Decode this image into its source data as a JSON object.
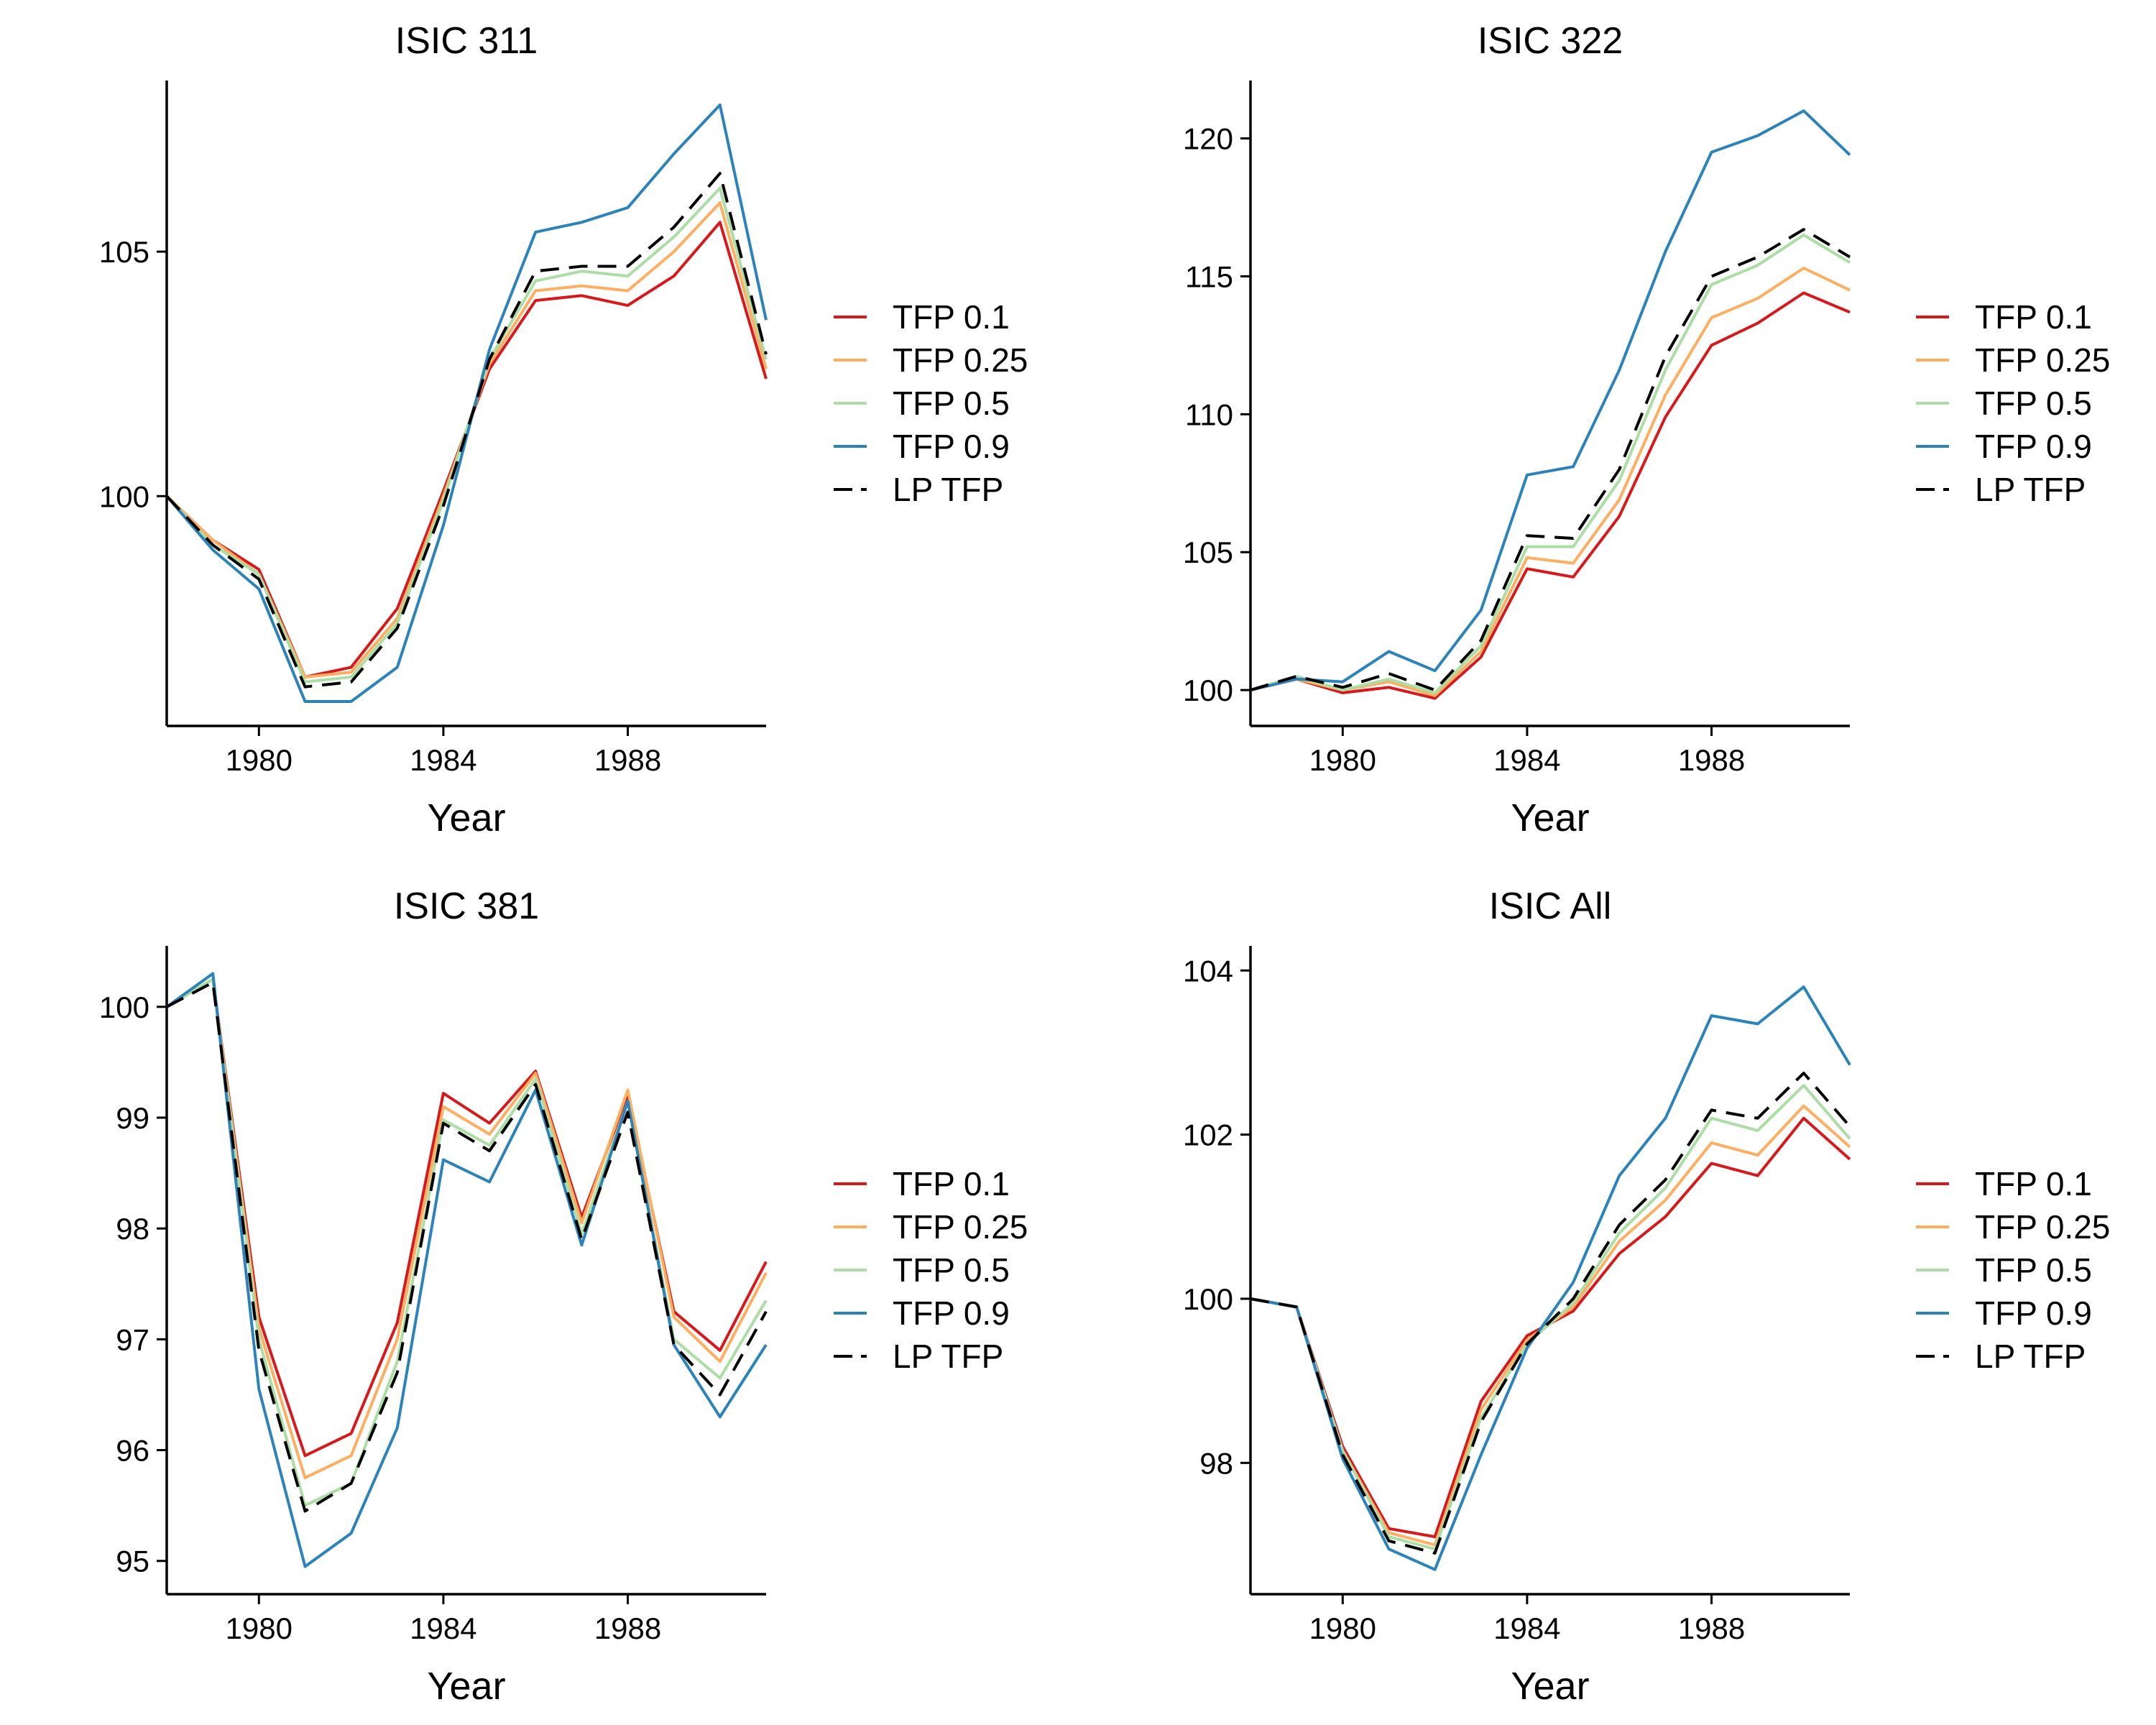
{
  "chart_data": [
    {
      "type": "line",
      "title": "ISIC 311",
      "xlabel": "Year",
      "ylabel": "",
      "xlim": [
        1978,
        1991
      ],
      "ylim": [
        95.3,
        108.5
      ],
      "xticks": [
        1980,
        1984,
        1988
      ],
      "yticks": [
        100,
        105
      ],
      "x": [
        1978,
        1979,
        1980,
        1981,
        1982,
        1983,
        1984,
        1985,
        1986,
        1987,
        1988,
        1989,
        1990,
        1991
      ],
      "series": [
        {
          "name": "TFP 0.1",
          "color": "#d7191c",
          "dash": "solid",
          "values": [
            100,
            99.1,
            98.5,
            96.3,
            96.5,
            97.7,
            100.1,
            102.6,
            104.0,
            104.1,
            103.9,
            104.5,
            105.6,
            102.4
          ]
        },
        {
          "name": "TFP 0.25",
          "color": "#fdae61",
          "dash": "solid",
          "values": [
            100,
            99.1,
            98.4,
            96.3,
            96.4,
            97.5,
            100.0,
            102.7,
            104.2,
            104.3,
            104.2,
            105.0,
            106.0,
            102.6
          ]
        },
        {
          "name": "TFP 0.5",
          "color": "#abdda4",
          "dash": "solid",
          "values": [
            100,
            99.0,
            98.4,
            96.2,
            96.3,
            97.4,
            99.9,
            102.8,
            104.4,
            104.6,
            104.5,
            105.3,
            106.3,
            102.8
          ]
        },
        {
          "name": "TFP 0.9",
          "color": "#2b83ba",
          "dash": "solid",
          "values": [
            100,
            98.9,
            98.1,
            95.8,
            95.8,
            96.5,
            99.4,
            103.0,
            105.4,
            105.6,
            105.9,
            107.0,
            108.0,
            103.6
          ]
        },
        {
          "name": "LP TFP",
          "color": "#000000",
          "dash": "dashed",
          "values": [
            100,
            99.0,
            98.3,
            96.1,
            96.2,
            97.3,
            99.8,
            102.8,
            104.6,
            104.7,
            104.7,
            105.5,
            106.6,
            102.9
          ]
        }
      ]
    },
    {
      "type": "line",
      "title": "ISIC 322",
      "xlabel": "Year",
      "ylabel": "",
      "xlim": [
        1978,
        1991
      ],
      "ylim": [
        98.7,
        122.1
      ],
      "xticks": [
        1980,
        1984,
        1988
      ],
      "yticks": [
        100,
        105,
        110,
        115,
        120
      ],
      "x": [
        1978,
        1979,
        1980,
        1981,
        1982,
        1983,
        1984,
        1985,
        1986,
        1987,
        1988,
        1989,
        1990,
        1991
      ],
      "series": [
        {
          "name": "TFP 0.1",
          "color": "#d7191c",
          "dash": "solid",
          "values": [
            100,
            100.4,
            99.9,
            100.1,
            99.7,
            101.2,
            104.4,
            104.1,
            106.3,
            109.9,
            112.5,
            113.3,
            114.4,
            113.7
          ]
        },
        {
          "name": "TFP 0.25",
          "color": "#fdae61",
          "dash": "solid",
          "values": [
            100,
            100.4,
            100.0,
            100.3,
            99.8,
            101.4,
            104.8,
            104.6,
            106.9,
            110.7,
            113.5,
            114.2,
            115.3,
            114.5
          ]
        },
        {
          "name": "TFP 0.5",
          "color": "#abdda4",
          "dash": "solid",
          "values": [
            100,
            100.5,
            100.0,
            100.4,
            99.9,
            101.6,
            105.2,
            105.2,
            107.6,
            111.6,
            114.7,
            115.4,
            116.5,
            115.5
          ]
        },
        {
          "name": "TFP 0.9",
          "color": "#2b83ba",
          "dash": "solid",
          "values": [
            100,
            100.4,
            100.3,
            101.4,
            100.7,
            102.9,
            107.8,
            108.1,
            111.6,
            115.9,
            119.5,
            120.1,
            121.0,
            119.4
          ]
        },
        {
          "name": "LP TFP",
          "color": "#000000",
          "dash": "dashed",
          "values": [
            100,
            100.5,
            100.1,
            100.6,
            100.0,
            101.8,
            105.6,
            105.5,
            108.0,
            112.1,
            115.0,
            115.7,
            116.7,
            115.7
          ]
        }
      ]
    },
    {
      "type": "line",
      "title": "ISIC 381",
      "xlabel": "Year",
      "ylabel": "",
      "xlim": [
        1978,
        1991
      ],
      "ylim": [
        94.7,
        100.55
      ],
      "xticks": [
        1980,
        1984,
        1988
      ],
      "yticks": [
        95,
        96,
        97,
        98,
        99,
        100
      ],
      "x": [
        1978,
        1979,
        1980,
        1981,
        1982,
        1983,
        1984,
        1985,
        1986,
        1987,
        1988,
        1989,
        1990,
        1991
      ],
      "series": [
        {
          "name": "TFP 0.1",
          "color": "#d7191c",
          "dash": "solid",
          "values": [
            100,
            100.25,
            97.2,
            95.95,
            96.15,
            97.15,
            99.22,
            98.95,
            99.42,
            98.1,
            99.2,
            97.25,
            96.9,
            97.7
          ]
        },
        {
          "name": "TFP 0.25",
          "color": "#fdae61",
          "dash": "solid",
          "values": [
            100,
            100.25,
            97.1,
            95.75,
            95.95,
            97.0,
            99.1,
            98.85,
            99.4,
            98.05,
            99.25,
            97.2,
            96.8,
            97.6
          ]
        },
        {
          "name": "TFP 0.5",
          "color": "#abdda4",
          "dash": "solid",
          "values": [
            100,
            100.25,
            97.0,
            95.5,
            95.7,
            96.8,
            98.98,
            98.75,
            99.35,
            97.95,
            99.15,
            97.0,
            96.65,
            97.35
          ]
        },
        {
          "name": "TFP 0.9",
          "color": "#2b83ba",
          "dash": "solid",
          "values": [
            100,
            100.3,
            96.55,
            94.95,
            95.25,
            96.2,
            98.62,
            98.42,
            99.25,
            97.85,
            99.15,
            96.95,
            96.3,
            96.95
          ]
        },
        {
          "name": "LP TFP",
          "color": "#000000",
          "dash": "dashed",
          "values": [
            100,
            100.22,
            96.9,
            95.45,
            95.7,
            96.7,
            98.95,
            98.7,
            99.3,
            97.9,
            99.05,
            96.95,
            96.5,
            97.25
          ]
        }
      ]
    },
    {
      "type": "line",
      "title": "ISIC All",
      "xlabel": "Year",
      "ylabel": "",
      "xlim": [
        1978,
        1991
      ],
      "ylim": [
        96.4,
        104.3
      ],
      "xticks": [
        1980,
        1984,
        1988
      ],
      "yticks": [
        98,
        100,
        102,
        104
      ],
      "x": [
        1978,
        1979,
        1980,
        1981,
        1982,
        1983,
        1984,
        1985,
        1986,
        1987,
        1988,
        1989,
        1990,
        1991
      ],
      "series": [
        {
          "name": "TFP 0.1",
          "color": "#d7191c",
          "dash": "solid",
          "values": [
            100,
            99.9,
            98.2,
            97.2,
            97.1,
            98.75,
            99.55,
            99.85,
            100.55,
            101.0,
            101.65,
            101.5,
            102.2,
            101.7
          ]
        },
        {
          "name": "TFP 0.25",
          "color": "#fdae61",
          "dash": "solid",
          "values": [
            100,
            99.9,
            98.15,
            97.15,
            97.0,
            98.65,
            99.5,
            99.9,
            100.7,
            101.2,
            101.9,
            101.75,
            102.35,
            101.85
          ]
        },
        {
          "name": "TFP 0.5",
          "color": "#abdda4",
          "dash": "solid",
          "values": [
            100,
            99.9,
            98.15,
            97.1,
            96.95,
            98.55,
            99.45,
            99.95,
            100.8,
            101.35,
            102.2,
            102.05,
            102.6,
            101.95
          ]
        },
        {
          "name": "TFP 0.9",
          "color": "#2b83ba",
          "dash": "solid",
          "values": [
            100,
            99.9,
            98.05,
            96.95,
            96.7,
            98.1,
            99.4,
            100.2,
            101.5,
            102.2,
            103.45,
            103.35,
            103.8,
            102.85
          ]
        },
        {
          "name": "LP TFP",
          "color": "#000000",
          "dash": "dashed",
          "values": [
            100,
            99.9,
            98.1,
            97.05,
            96.9,
            98.5,
            99.45,
            100.0,
            100.9,
            101.45,
            102.3,
            102.2,
            102.75,
            102.1
          ]
        }
      ]
    }
  ]
}
